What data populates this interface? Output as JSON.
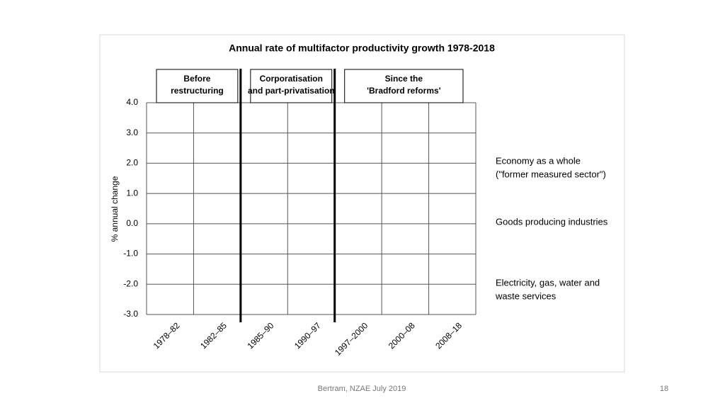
{
  "chart_data": {
    "type": "bar",
    "title": "Annual rate of multifactor productivity growth 1978-2018",
    "y_label": "% annual change",
    "categories": [
      "1978–82",
      "1982–85",
      "1985–90",
      "1990–97",
      "1997–2000",
      "2000–08",
      "2008–18"
    ],
    "ylim": [
      -3,
      4
    ],
    "yticks": [
      {
        "value": 4,
        "label": "4.0"
      },
      {
        "value": 3,
        "label": "3.0"
      },
      {
        "value": 2,
        "label": "2.0"
      },
      {
        "value": 1,
        "label": "1.0"
      },
      {
        "value": 0,
        "label": "0.0"
      },
      {
        "value": -1,
        "label": "-1.0"
      },
      {
        "value": -2,
        "label": "-2.0"
      },
      {
        "value": -3,
        "label": "-3.0"
      }
    ],
    "grid": true,
    "periods": [
      {
        "lines": [
          "Before",
          "restructuring"
        ],
        "from": 0,
        "to": 1
      },
      {
        "lines": [
          "Corporatisation",
          "and part-privatisation"
        ],
        "from": 2,
        "to": 3
      },
      {
        "lines": [
          "Since the",
          "'Bradford reforms'"
        ],
        "from": 4,
        "to": 6
      }
    ],
    "series": [
      {
        "name": [
          "Economy as a whole",
          "(\"former measured sector\")"
        ]
      },
      {
        "name": [
          "Goods producing industries"
        ]
      },
      {
        "name": [
          "Electricity, gas, water and",
          "waste services"
        ]
      }
    ]
  },
  "footer": {
    "source": "Bertram, NZAE July 2019",
    "page": "18"
  }
}
